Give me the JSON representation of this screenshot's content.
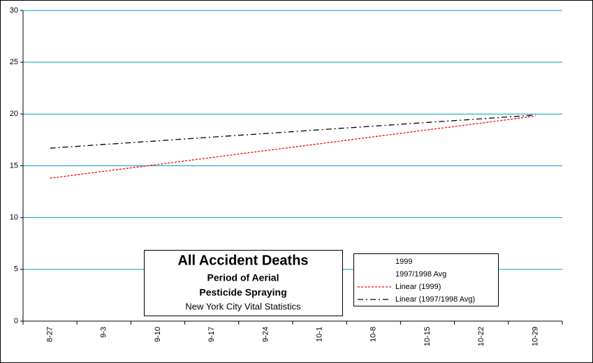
{
  "chart_data": {
    "type": "line",
    "title": "All Accident Deaths",
    "subtitle": [
      "Period of Aerial",
      "Pesticide Spraying"
    ],
    "source": "New York City Vital Statistics",
    "categories": [
      "8-27",
      "9-3",
      "9-10",
      "9-17",
      "9-24",
      "10-1",
      "10-8",
      "10-15",
      "10-22",
      "10-29"
    ],
    "series": [
      {
        "name": "1999",
        "values": [
          null,
          null,
          null,
          null,
          null,
          null,
          null,
          null,
          null,
          null
        ]
      },
      {
        "name": "1997/1998 Avg",
        "values": [
          null,
          null,
          null,
          null,
          null,
          null,
          null,
          null,
          null,
          null
        ]
      },
      {
        "name": "Linear (1999)",
        "color": "#ff0000",
        "style": "dashed",
        "values": [
          13.8,
          14.47,
          15.13,
          15.8,
          16.47,
          17.13,
          17.8,
          18.47,
          19.13,
          19.8
        ]
      },
      {
        "name": "Linear (1997/1998 Avg)",
        "color": "#000000",
        "style": "dash-dot",
        "values": [
          16.7,
          17.06,
          17.41,
          17.77,
          18.12,
          18.48,
          18.83,
          19.19,
          19.54,
          19.9
        ]
      }
    ],
    "ylim": [
      0,
      30
    ],
    "yticks": [
      0,
      5,
      10,
      15,
      20,
      25,
      30
    ],
    "grid": true,
    "grid_color": "#00a0c0"
  }
}
